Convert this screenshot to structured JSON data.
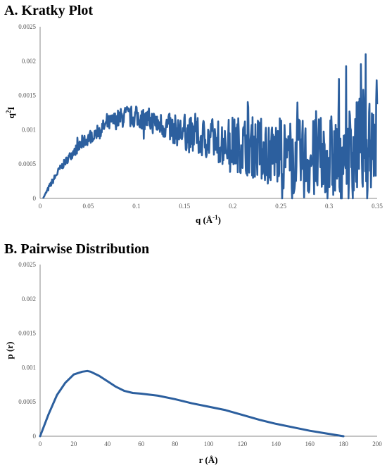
{
  "chart_data": [
    {
      "type": "line",
      "title": "A. Kratky Plot",
      "xlabel": "q (Å",
      "xlabel_sup": "-1",
      "xlabel_close": ")",
      "ylabel": "q",
      "ylabel_sup": "2",
      "ylabel_tail": "I",
      "xlim": [
        0,
        0.35
      ],
      "ylim": [
        0,
        0.0025
      ],
      "x_ticks": [
        "0",
        "0.05",
        "0.1",
        "0.15",
        "0.2",
        "0.25",
        "0.3",
        "0.35"
      ],
      "y_ticks": [
        "0",
        "0.0005",
        "0.001",
        "0.0015",
        "0.002",
        "0.0025"
      ],
      "grid": false,
      "color": "#2c5f9e",
      "series": [
        {
          "x": [
            0.003,
            0.01,
            0.02,
            0.03,
            0.04,
            0.05,
            0.06,
            0.07,
            0.08,
            0.09,
            0.1,
            0.11,
            0.12,
            0.13,
            0.14,
            0.15,
            0.16,
            0.17,
            0.18,
            0.19,
            0.2,
            0.21,
            0.22,
            0.23,
            0.24,
            0.25,
            0.26,
            0.27,
            0.28,
            0.29,
            0.3,
            0.31,
            0.32,
            0.33,
            0.34,
            0.35
          ],
          "values": [
            0,
            0.00018,
            0.00042,
            0.0006,
            0.00075,
            0.00088,
            0.00098,
            0.00108,
            0.00115,
            0.0012,
            0.00118,
            0.00115,
            0.0011,
            0.00105,
            0.001,
            0.00095,
            0.0009,
            0.00088,
            0.00085,
            0.00082,
            0.0008,
            0.00078,
            0.00075,
            0.00072,
            0.00068,
            0.00065,
            0.0006,
            0.00058,
            0.00055,
            0.00055,
            0.00058,
            0.0006,
            0.00065,
            0.00075,
            0.0009,
            0.001
          ],
          "spread": [
            0,
            4e-05,
            5e-05,
            6e-05,
            8e-05,
            0.0001,
            0.0001,
            0.00012,
            0.00014,
            0.00016,
            0.00016,
            0.00016,
            0.00018,
            0.0002,
            0.00022,
            0.00025,
            0.00028,
            0.0003,
            0.00033,
            0.00036,
            0.0004,
            0.00042,
            0.00045,
            0.00048,
            0.0005,
            0.00053,
            0.00055,
            0.00058,
            0.0006,
            0.00063,
            0.00065,
            0.00068,
            0.0007,
            0.00075,
            0.0008,
            0.00085
          ]
        }
      ]
    },
    {
      "type": "line",
      "title": "B. Pairwise Distribution",
      "xlabel": "r (Å)",
      "ylabel": "p (r)",
      "xlim": [
        0,
        200
      ],
      "ylim": [
        0,
        0.0025
      ],
      "x_ticks": [
        "0",
        "20",
        "40",
        "60",
        "80",
        "100",
        "120",
        "140",
        "160",
        "180",
        "200"
      ],
      "y_ticks": [
        "0",
        "0.0005",
        "0.001",
        "0.0015",
        "0.002",
        "0.0025"
      ],
      "grid": false,
      "color": "#2c5f9e",
      "series": [
        {
          "x": [
            0,
            5,
            10,
            15,
            20,
            25,
            28,
            30,
            35,
            40,
            45,
            50,
            55,
            60,
            70,
            80,
            90,
            100,
            110,
            120,
            130,
            140,
            150,
            160,
            170,
            180
          ],
          "values": [
            0,
            0.00032,
            0.0006,
            0.00078,
            0.0009,
            0.00094,
            0.00095,
            0.00094,
            0.00088,
            0.0008,
            0.00072,
            0.00066,
            0.00063,
            0.00062,
            0.00059,
            0.00054,
            0.00048,
            0.00043,
            0.00038,
            0.00031,
            0.00024,
            0.00018,
            0.00013,
            8e-05,
            4e-05,
            0
          ]
        }
      ]
    }
  ]
}
